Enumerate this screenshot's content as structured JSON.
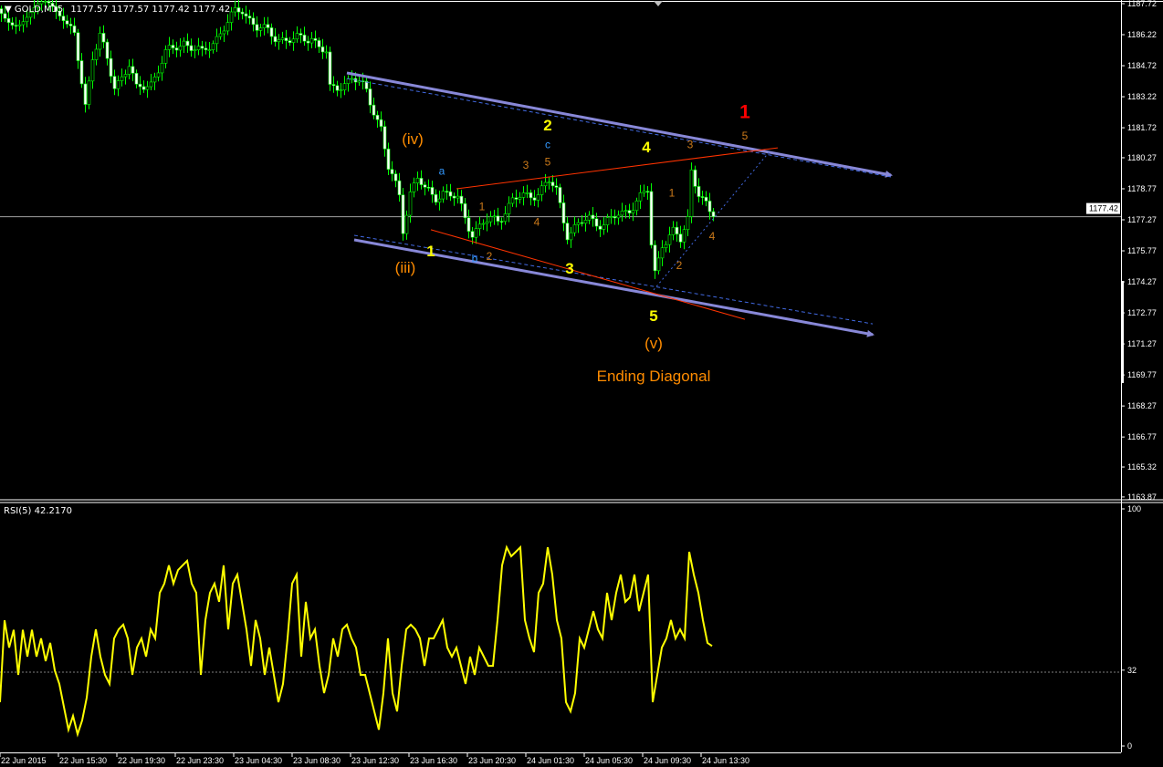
{
  "header": {
    "symbol": "GOLD,M15",
    "ohlc": "1177.57 1177.57 1177.42 1177.42"
  },
  "rsi_header": {
    "label": "RSI(5) 42.2170"
  },
  "colors": {
    "background": "#000000",
    "bull_candle": "#00ff00",
    "bear_candle_body": "#ffffff",
    "rsi_line": "#ffff00",
    "channel": "#8080d0",
    "red_line": "#ff3300",
    "blue_dashed": "#4169e1",
    "axis": "#ffffff"
  },
  "chart_data": [
    {
      "type": "candlestick",
      "title": "GOLD,M15",
      "price_axis_ticks": [
        "1187.72",
        "1186.22",
        "1184.72",
        "1183.22",
        "1181.72",
        "1180.27",
        "1178.77",
        "1177.27",
        "1175.77",
        "1174.27",
        "1172.77",
        "1171.27",
        "1169.77",
        "1168.27",
        "1166.77",
        "1165.32",
        "1163.87"
      ],
      "current_price": "1177.42",
      "ylim": [
        1163.87,
        1187.72
      ],
      "time_axis_ticks": [
        "22 Jun 2015",
        "22 Jun 15:30",
        "22 Jun 19:30",
        "22 Jun 23:30",
        "23 Jun 04:30",
        "23 Jun 08:30",
        "23 Jun 12:30",
        "23 Jun 16:30",
        "23 Jun 20:30",
        "24 Jun 01:30",
        "24 Jun 05:30",
        "24 Jun 09:30",
        "24 Jun 13:30"
      ],
      "close_path": [
        [
          "22 16:15",
          1187.24
        ],
        [
          "22 17:15",
          1182.83
        ],
        [
          "22 17:45",
          1185.25
        ],
        [
          "22 18:15",
          1186.13
        ],
        [
          "22 19:15",
          1183.71
        ],
        [
          "22 20:15",
          1184.81
        ],
        [
          "22 20:45",
          1183.49
        ],
        [
          "22 21:45",
          1183.93
        ],
        [
          "22 22:45",
          1185.25
        ],
        [
          "23 00:00",
          1185.91
        ],
        [
          "23 01:15",
          1185.25
        ],
        [
          "23 02:30",
          1186.35
        ],
        [
          "23 03:30",
          1187.24
        ],
        [
          "23 04:00",
          1187.46
        ],
        [
          "23 05:00",
          1186.57
        ],
        [
          "23 06:15",
          1186.13
        ],
        [
          "23 07:30",
          1185.91
        ],
        [
          "23 08:45",
          1186.13
        ],
        [
          "23 09:45",
          1185.25
        ],
        [
          "23 10:00",
          1183.49
        ],
        [
          "23 11:00",
          1183.93
        ],
        [
          "23 11:30",
          1184.15
        ],
        [
          "23 12:30",
          1183.49
        ],
        [
          "23 13:30",
          1181.72
        ],
        [
          "23 14:00",
          1179.74
        ],
        [
          "23 14:45",
          1178.42
        ],
        [
          "23 15:00",
          1176.87
        ],
        [
          "23 15:30",
          1178.64
        ],
        [
          "23 16:00",
          1179.3
        ],
        [
          "23 16:30",
          1178.64
        ],
        [
          "23 17:15",
          1178.42
        ],
        [
          "23 17:45",
          1178.64
        ],
        [
          "23 18:45",
          1178.2
        ],
        [
          "23 19:45",
          1176.65
        ],
        [
          "23 20:30",
          1177.09
        ],
        [
          "23 21:30",
          1177.31
        ],
        [
          "23 22:30",
          1178.2
        ],
        [
          "23 23:30",
          1178.42
        ],
        [
          "24 00:15",
          1178.64
        ],
        [
          "24 01:00",
          1179.08
        ],
        [
          "24 01:30",
          1178.64
        ],
        [
          "24 02:15",
          1176.65
        ],
        [
          "24 02:45",
          1176.87
        ],
        [
          "24 03:45",
          1177.31
        ],
        [
          "24 04:45",
          1177.09
        ],
        [
          "24 06:00",
          1177.53
        ],
        [
          "24 07:00",
          1178.2
        ],
        [
          "24 07:45",
          1178.64
        ],
        [
          "24 08:00",
          1176.0
        ],
        [
          "24 08:15",
          1174.67
        ],
        [
          "24 08:45",
          1176.21
        ],
        [
          "24 09:30",
          1176.65
        ],
        [
          "24 10:00",
          1176.21
        ],
        [
          "24 10:30",
          1177.31
        ],
        [
          "24 10:45",
          1179.74
        ],
        [
          "24 11:15",
          1178.64
        ],
        [
          "24 12:00",
          1177.53
        ],
        [
          "24 12:15",
          1177.42
        ]
      ],
      "trendlines": [
        {
          "kind": "channel-upper",
          "style": "solid-arrow",
          "color": "#8888d8",
          "from": [
            "23 11:15",
            1184.37
          ],
          "to": [
            "25 00:30",
            1179.43
          ]
        },
        {
          "kind": "channel-lower",
          "style": "solid-arrow",
          "color": "#8888d8",
          "from": [
            "23 11:45",
            1176.3
          ],
          "to": [
            "24 23:15",
            1171.72
          ]
        },
        {
          "kind": "dashed-upper",
          "style": "dashed",
          "color": "#4169e1",
          "from": [
            "23 11:15",
            1184.1
          ],
          "to": [
            "25 00:30",
            1179.34
          ]
        },
        {
          "kind": "dashed-lower",
          "style": "dashed",
          "color": "#4169e1",
          "from": [
            "23 11:45",
            1176.52
          ],
          "to": [
            "24 23:15",
            1172.24
          ]
        },
        {
          "kind": "diagonal-upper",
          "style": "solid",
          "color": "#ff3300",
          "from": [
            "23 18:45",
            1178.77
          ],
          "to": [
            "24 16:45",
            1180.75
          ]
        },
        {
          "kind": "diagonal-lower",
          "style": "solid",
          "color": "#ff3300",
          "from": [
            "23 17:00",
            1176.79
          ],
          "to": [
            "24 14:30",
            1172.46
          ]
        },
        {
          "kind": "wedge-dotted",
          "style": "dotted",
          "color": "#4169e1",
          "from": [
            "24 08:15",
            1173.88
          ],
          "to": [
            "24 16:15",
            1180.62
          ]
        }
      ],
      "annotations": [
        {
          "text": "(iv)",
          "at": [
            "23 15:45",
            1181.19
          ],
          "color": "#ff8c00",
          "size": "large"
        },
        {
          "text": "(iii)",
          "at": [
            "23 15:15",
            1174.98
          ],
          "color": "#ff8c00",
          "size": "large"
        },
        {
          "text": "a",
          "at": [
            "23 17:45",
            1179.65
          ],
          "color": "#3399ff",
          "size": "small"
        },
        {
          "text": "1",
          "at": [
            "23 17:00",
            1175.77
          ],
          "color": "#ffff00",
          "size": "bold"
        },
        {
          "text": "b",
          "at": [
            "23 20:00",
            1175.42
          ],
          "color": "#3399ff",
          "size": "small"
        },
        {
          "text": "2",
          "at": [
            "23 21:00",
            1175.51
          ],
          "color": "#cc7a1a",
          "size": "small"
        },
        {
          "text": "1",
          "at": [
            "23 20:30",
            1177.93
          ],
          "color": "#cc7a1a",
          "size": "small"
        },
        {
          "text": "3",
          "at": [
            "23 23:30",
            1179.92
          ],
          "color": "#cc7a1a",
          "size": "small"
        },
        {
          "text": "4",
          "at": [
            "24 00:15",
            1177.18
          ],
          "color": "#cc7a1a",
          "size": "small"
        },
        {
          "text": "2",
          "at": [
            "24 01:00",
            1181.86
          ],
          "color": "#ffff00",
          "size": "bold"
        },
        {
          "text": "c",
          "at": [
            "24 01:00",
            1180.93
          ],
          "color": "#3399ff",
          "size": "small"
        },
        {
          "text": "5",
          "at": [
            "24 01:00",
            1180.09
          ],
          "color": "#cc7a1a",
          "size": "small"
        },
        {
          "text": "3",
          "at": [
            "24 02:30",
            1174.93
          ],
          "color": "#ffff00",
          "size": "bold"
        },
        {
          "text": "4",
          "at": [
            "24 07:45",
            1180.8
          ],
          "color": "#ffff00",
          "size": "bold"
        },
        {
          "text": "5",
          "at": [
            "24 08:15",
            1172.64
          ],
          "color": "#ffff00",
          "size": "bold"
        },
        {
          "text": "(v)",
          "at": [
            "24 08:15",
            1171.32
          ],
          "color": "#ff8c00",
          "size": "large"
        },
        {
          "text": "Ending Diagonal",
          "at": [
            "24 08:15",
            1169.73
          ],
          "color": "#ff8c00",
          "size": "large"
        },
        {
          "text": "1",
          "at": [
            "24 09:30",
            1178.59
          ],
          "color": "#cc7a1a",
          "size": "small"
        },
        {
          "text": "2",
          "at": [
            "24 10:00",
            1175.07
          ],
          "color": "#cc7a1a",
          "size": "small"
        },
        {
          "text": "3",
          "at": [
            "24 10:45",
            1180.93
          ],
          "color": "#cc7a1a",
          "size": "small"
        },
        {
          "text": "4",
          "at": [
            "24 12:15",
            1176.48
          ],
          "color": "#cc7a1a",
          "size": "small"
        },
        {
          "text": "5",
          "at": [
            "24 14:30",
            1181.33
          ],
          "color": "#cc7a1a",
          "size": "small"
        },
        {
          "text": "1",
          "at": [
            "24 14:30",
            1182.52
          ],
          "color": "#ff0000",
          "size": "xlarge"
        }
      ]
    },
    {
      "type": "line",
      "title": "RSI(5) 42.2170",
      "series": [
        {
          "name": "RSI(5)",
          "color": "#ffff00"
        }
      ],
      "ylim": [
        0,
        100
      ],
      "y_ticks": [
        "100",
        "32",
        "0"
      ],
      "level": 32,
      "x_range": [
        "22 11:30",
        "24 12:15"
      ],
      "values": [
        18.5,
        53,
        41.5,
        49,
        30,
        49,
        37.7,
        49,
        37.7,
        45.4,
        35.8,
        43.5,
        31.9,
        26.2,
        16.5,
        6.9,
        12.7,
        5,
        10.8,
        20.4,
        37.7,
        49.2,
        37.7,
        30,
        26.2,
        45.4,
        49.2,
        51.2,
        45.4,
        30,
        41.5,
        45.4,
        37.7,
        49.2,
        45.4,
        64.6,
        68.5,
        76.2,
        68.5,
        74.2,
        76.2,
        78.1,
        68.5,
        64.6,
        30,
        53.1,
        64.6,
        68.5,
        60.8,
        76.2,
        49.2,
        68.5,
        72.3,
        60.8,
        49.2,
        33.8,
        53.1,
        45.4,
        30,
        41.5,
        30,
        18.5,
        26.2,
        45.4,
        68.5,
        72.3,
        37.7,
        60.8,
        45.4,
        49.2,
        33.8,
        22.3,
        30,
        45.4,
        37.7,
        49.2,
        51.2,
        45.4,
        41.5,
        30,
        30,
        22.3,
        14.6,
        6.9,
        22.3,
        45.4,
        22.3,
        14.6,
        33.8,
        49.2,
        51.2,
        49.2,
        45.4,
        33.8,
        45.4,
        45.4,
        49.2,
        53.1,
        41.5,
        37.7,
        41.5,
        33.8,
        26.2,
        37.7,
        30,
        41.5,
        37.7,
        33.8,
        33.8,
        53.1,
        76.2,
        83.8,
        80,
        81.9,
        83.8,
        53.1,
        45.4,
        39.6,
        64.6,
        68.5,
        83.8,
        72.3,
        53.1,
        45.4,
        18.5,
        14.6,
        22.3,
        45.4,
        41.5,
        49.2,
        56.9,
        49.2,
        45.4,
        64.6,
        53.1,
        64.6,
        72.3,
        60.8,
        62.7,
        72.3,
        56.9,
        64.6,
        72.3,
        18.5,
        30,
        41.5,
        45.4,
        53.1,
        45.4,
        49.2,
        45.4,
        81.9,
        72.3,
        64.6,
        53.1,
        43.5,
        42.2
      ]
    }
  ]
}
